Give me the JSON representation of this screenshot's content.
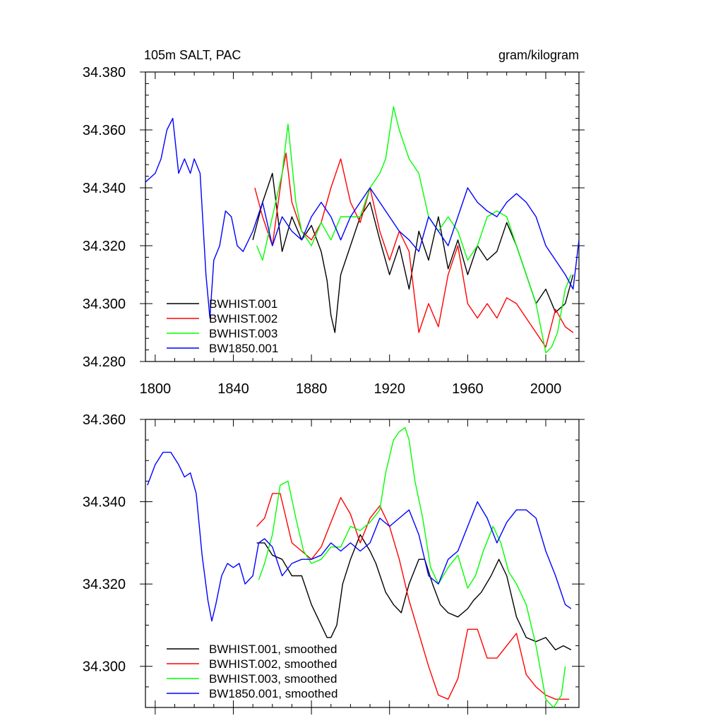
{
  "chart_data": [
    {
      "type": "line",
      "title_left": "105m SALT, PAC",
      "title_right": "gram/kilogram",
      "xlim": [
        1795,
        2017
      ],
      "ylim": [
        34.28,
        34.38
      ],
      "xticks": [
        1800,
        1840,
        1880,
        1920,
        1960,
        2000
      ],
      "yticks": [
        34.28,
        34.3,
        34.32,
        34.34,
        34.36,
        34.38
      ],
      "ytick_labels": [
        "34.280",
        "34.300",
        "34.320",
        "34.340",
        "34.360",
        "34.380"
      ],
      "xtick_labels": [
        "1800",
        "1840",
        "1880",
        "1920",
        "1960",
        "2000"
      ],
      "legend_position": "bottom-left",
      "series": [
        {
          "name": "BWHIST.001",
          "color": "#000000",
          "x": [
            1850,
            1855,
            1860,
            1865,
            1870,
            1875,
            1880,
            1885,
            1888,
            1890,
            1892,
            1895,
            1900,
            1905,
            1910,
            1915,
            1920,
            1925,
            1930,
            1935,
            1940,
            1945,
            1950,
            1955,
            1960,
            1965,
            1970,
            1975,
            1980,
            1985,
            1990,
            1995,
            2000,
            2005,
            2010,
            2014
          ],
          "values": [
            34.322,
            34.335,
            34.345,
            34.318,
            34.33,
            34.322,
            34.327,
            34.318,
            34.308,
            34.296,
            34.29,
            34.31,
            34.32,
            34.33,
            34.335,
            34.322,
            34.31,
            34.32,
            34.305,
            34.325,
            34.315,
            34.33,
            34.312,
            34.322,
            34.31,
            34.32,
            34.315,
            34.318,
            34.328,
            34.32,
            34.31,
            34.3,
            34.305,
            34.297,
            34.3,
            34.31
          ]
        },
        {
          "name": "BWHIST.002",
          "color": "#ff0000",
          "x": [
            1851,
            1855,
            1860,
            1865,
            1867,
            1870,
            1875,
            1880,
            1885,
            1890,
            1895,
            1900,
            1905,
            1910,
            1915,
            1920,
            1925,
            1930,
            1935,
            1940,
            1945,
            1950,
            1955,
            1960,
            1965,
            1970,
            1975,
            1980,
            1985,
            1990,
            1995,
            2000,
            2005,
            2010,
            2014
          ],
          "values": [
            34.34,
            34.33,
            34.32,
            34.345,
            34.352,
            34.335,
            34.325,
            34.322,
            34.328,
            34.34,
            34.35,
            34.335,
            34.328,
            34.34,
            34.325,
            34.315,
            34.325,
            34.318,
            34.29,
            34.3,
            34.292,
            34.31,
            34.32,
            34.3,
            34.295,
            34.3,
            34.295,
            34.302,
            34.3,
            34.295,
            34.29,
            34.285,
            34.298,
            34.292,
            34.29
          ]
        },
        {
          "name": "BWHIST.003",
          "color": "#00ff00",
          "x": [
            1852,
            1855,
            1860,
            1865,
            1868,
            1872,
            1875,
            1880,
            1885,
            1890,
            1895,
            1900,
            1905,
            1910,
            1915,
            1918,
            1922,
            1925,
            1930,
            1935,
            1940,
            1945,
            1950,
            1955,
            1960,
            1965,
            1970,
            1975,
            1980,
            1985,
            1990,
            1995,
            2000,
            2003,
            2006,
            2010,
            2013
          ],
          "values": [
            34.32,
            34.315,
            34.33,
            34.345,
            34.362,
            34.335,
            34.325,
            34.32,
            34.328,
            34.322,
            34.33,
            34.33,
            34.33,
            34.34,
            34.345,
            34.35,
            34.368,
            34.36,
            34.35,
            34.345,
            34.33,
            34.325,
            34.33,
            34.325,
            34.315,
            34.32,
            34.33,
            34.332,
            34.33,
            34.32,
            34.31,
            34.3,
            34.283,
            34.285,
            34.29,
            34.305,
            34.31
          ]
        },
        {
          "name": "BW1850.001",
          "color": "#0000ff",
          "x": [
            1795,
            1800,
            1803,
            1806,
            1809,
            1812,
            1815,
            1818,
            1820,
            1823,
            1826,
            1828,
            1830,
            1833,
            1836,
            1839,
            1842,
            1845,
            1850,
            1855,
            1860,
            1865,
            1870,
            1875,
            1880,
            1885,
            1890,
            1895,
            1900,
            1905,
            1910,
            1915,
            1920,
            1925,
            1930,
            1935,
            1940,
            1945,
            1950,
            1955,
            1960,
            1965,
            1970,
            1975,
            1980,
            1985,
            1990,
            1995,
            2000,
            2005,
            2010,
            2014,
            2017
          ],
          "values": [
            34.342,
            34.345,
            34.35,
            34.36,
            34.364,
            34.345,
            34.35,
            34.345,
            34.35,
            34.345,
            34.31,
            34.295,
            34.315,
            34.32,
            34.332,
            34.33,
            34.32,
            34.318,
            34.325,
            34.335,
            34.32,
            34.33,
            34.325,
            34.322,
            34.33,
            34.335,
            34.33,
            34.322,
            34.33,
            34.335,
            34.34,
            34.335,
            34.33,
            34.325,
            34.322,
            34.318,
            34.33,
            34.325,
            34.32,
            34.33,
            34.34,
            34.335,
            34.332,
            34.33,
            34.335,
            34.338,
            34.335,
            34.33,
            34.32,
            34.315,
            34.31,
            34.305,
            34.322
          ]
        }
      ]
    },
    {
      "type": "line",
      "xlim": [
        1795,
        2017
      ],
      "ylim": [
        34.29,
        34.36
      ],
      "xticks": [
        1800,
        1840,
        1880,
        1920,
        1960,
        2000
      ],
      "yticks": [
        34.3,
        34.32,
        34.34,
        34.36
      ],
      "ytick_labels": [
        "34.300",
        "34.320",
        "34.340",
        "34.360"
      ],
      "legend_position": "bottom-left",
      "series": [
        {
          "name": "BWHIST.001, smoothed",
          "color": "#000000",
          "x": [
            1852,
            1856,
            1860,
            1865,
            1870,
            1875,
            1880,
            1885,
            1888,
            1890,
            1893,
            1896,
            1900,
            1905,
            1910,
            1913,
            1918,
            1922,
            1926,
            1930,
            1935,
            1938,
            1942,
            1946,
            1950,
            1955,
            1960,
            1963,
            1967,
            1972,
            1976,
            1980,
            1985,
            1990,
            1995,
            2000,
            2005,
            2009,
            2013
          ],
          "values": [
            34.33,
            34.33,
            34.327,
            34.326,
            34.322,
            34.322,
            34.315,
            34.31,
            34.307,
            34.307,
            34.31,
            34.32,
            34.326,
            34.332,
            34.328,
            34.325,
            34.318,
            34.315,
            34.313,
            34.32,
            34.326,
            34.326,
            34.32,
            34.315,
            34.313,
            34.312,
            34.314,
            34.316,
            34.318,
            34.322,
            34.326,
            34.322,
            34.312,
            34.307,
            34.306,
            34.307,
            34.304,
            34.305,
            34.304
          ]
        },
        {
          "name": "BWHIST.002, smoothed",
          "color": "#ff0000",
          "x": [
            1852,
            1856,
            1860,
            1864,
            1870,
            1875,
            1880,
            1885,
            1890,
            1895,
            1900,
            1905,
            1910,
            1915,
            1920,
            1925,
            1930,
            1935,
            1940,
            1945,
            1950,
            1955,
            1960,
            1965,
            1970,
            1975,
            1980,
            1985,
            1990,
            1995,
            2000,
            2005,
            2010,
            2012
          ],
          "values": [
            34.334,
            34.336,
            34.342,
            34.342,
            34.33,
            34.328,
            34.326,
            34.329,
            34.335,
            34.341,
            34.337,
            34.33,
            34.336,
            34.339,
            34.334,
            34.326,
            34.316,
            34.308,
            34.3,
            34.293,
            34.292,
            34.297,
            34.309,
            34.309,
            34.302,
            34.302,
            34.305,
            34.308,
            34.298,
            34.295,
            34.293,
            34.292,
            34.292,
            34.292
          ]
        },
        {
          "name": "BWHIST.003, smoothed",
          "color": "#00ff00",
          "x": [
            1853,
            1856,
            1860,
            1864,
            1868,
            1872,
            1876,
            1880,
            1885,
            1890,
            1895,
            1900,
            1905,
            1910,
            1915,
            1918,
            1922,
            1925,
            1928,
            1930,
            1933,
            1937,
            1941,
            1945,
            1950,
            1955,
            1960,
            1964,
            1968,
            1973,
            1977,
            1981,
            1985,
            1990,
            1995,
            2000,
            2004,
            2008,
            2010
          ],
          "values": [
            34.321,
            34.325,
            34.332,
            34.344,
            34.345,
            34.336,
            34.328,
            34.325,
            34.326,
            34.329,
            34.329,
            34.334,
            34.333,
            34.335,
            34.338,
            34.347,
            34.355,
            34.357,
            34.358,
            34.355,
            34.345,
            34.336,
            34.324,
            34.32,
            34.324,
            34.327,
            34.319,
            34.322,
            34.328,
            34.334,
            34.33,
            34.323,
            34.32,
            34.315,
            34.305,
            34.292,
            34.29,
            34.293,
            34.3
          ]
        },
        {
          "name": "BW1850.001, smoothed",
          "color": "#0000ff",
          "x": [
            1796,
            1800,
            1804,
            1808,
            1812,
            1815,
            1818,
            1821,
            1824,
            1827,
            1829,
            1831,
            1834,
            1837,
            1840,
            1843,
            1846,
            1850,
            1853,
            1856,
            1860,
            1865,
            1870,
            1875,
            1880,
            1885,
            1890,
            1895,
            1900,
            1905,
            1910,
            1915,
            1920,
            1925,
            1930,
            1935,
            1940,
            1945,
            1950,
            1955,
            1960,
            1965,
            1970,
            1975,
            1980,
            1985,
            1990,
            1995,
            2000,
            2005,
            2010,
            2013
          ],
          "values": [
            34.344,
            34.349,
            34.352,
            34.352,
            34.349,
            34.346,
            34.347,
            34.342,
            34.327,
            34.316,
            34.311,
            34.315,
            34.322,
            34.325,
            34.324,
            34.325,
            34.32,
            34.322,
            34.33,
            34.331,
            34.329,
            34.322,
            34.325,
            34.326,
            34.326,
            34.327,
            34.33,
            34.328,
            34.33,
            34.328,
            34.33,
            34.336,
            34.334,
            34.336,
            34.338,
            34.332,
            34.322,
            34.32,
            34.326,
            34.328,
            34.334,
            34.34,
            34.336,
            34.33,
            34.335,
            34.338,
            34.338,
            34.336,
            34.328,
            34.322,
            34.315,
            34.314
          ]
        }
      ]
    }
  ]
}
